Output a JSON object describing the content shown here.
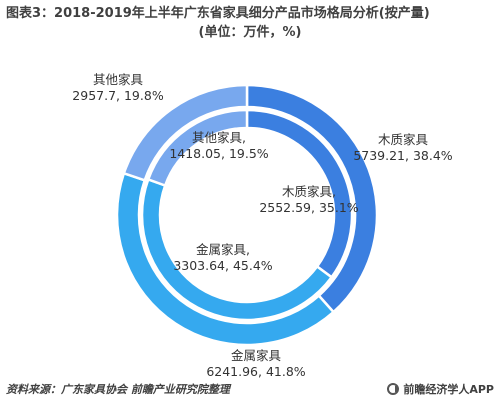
{
  "title": {
    "line1": "图表3：2018-2019年上半年广东省家具细分产品市场格局分析(按产量)",
    "line2": "(单位：万件，%)"
  },
  "chart_data": {
    "type": "pie",
    "variant": "double-donut",
    "colors": {
      "木质家具": "#3b7fe0",
      "金属家具": "#35a9ef",
      "其他家具": "#78a8ee"
    },
    "series": [
      {
        "values": [
          {
            "category": "木质家具",
            "value": 5739.21,
            "percent": 38.4,
            "label_line1": "木质家具",
            "label_line2": "5739.21, 38.4%"
          },
          {
            "category": "金属家具",
            "value": 6241.96,
            "percent": 41.8,
            "label_line1": "金属家具",
            "label_line2": "6241.96, 41.8%"
          },
          {
            "category": "其他家具",
            "value": 2957.7,
            "percent": 19.8,
            "label_line1": "其他家具",
            "label_line2": "2957.7, 19.8%"
          }
        ]
      },
      {
        "values": [
          {
            "category": "木质家具",
            "value": 2552.59,
            "percent": 35.1,
            "label_line1": "木质家具,",
            "label_line2": "2552.59, 35.1%"
          },
          {
            "category": "金属家具",
            "value": 3303.64,
            "percent": 45.4,
            "label_line1": "金属家具,",
            "label_line2": "3303.64, 45.4%"
          },
          {
            "category": "其他家具",
            "value": 1418.05,
            "percent": 19.5,
            "label_line1": "其他家具,",
            "label_line2": "1418.05, 19.5%"
          }
        ]
      }
    ]
  },
  "footer": {
    "source": "资料来源：广东家具协会 前瞻产业研究院整理",
    "brand": "前瞻经济学人APP"
  }
}
